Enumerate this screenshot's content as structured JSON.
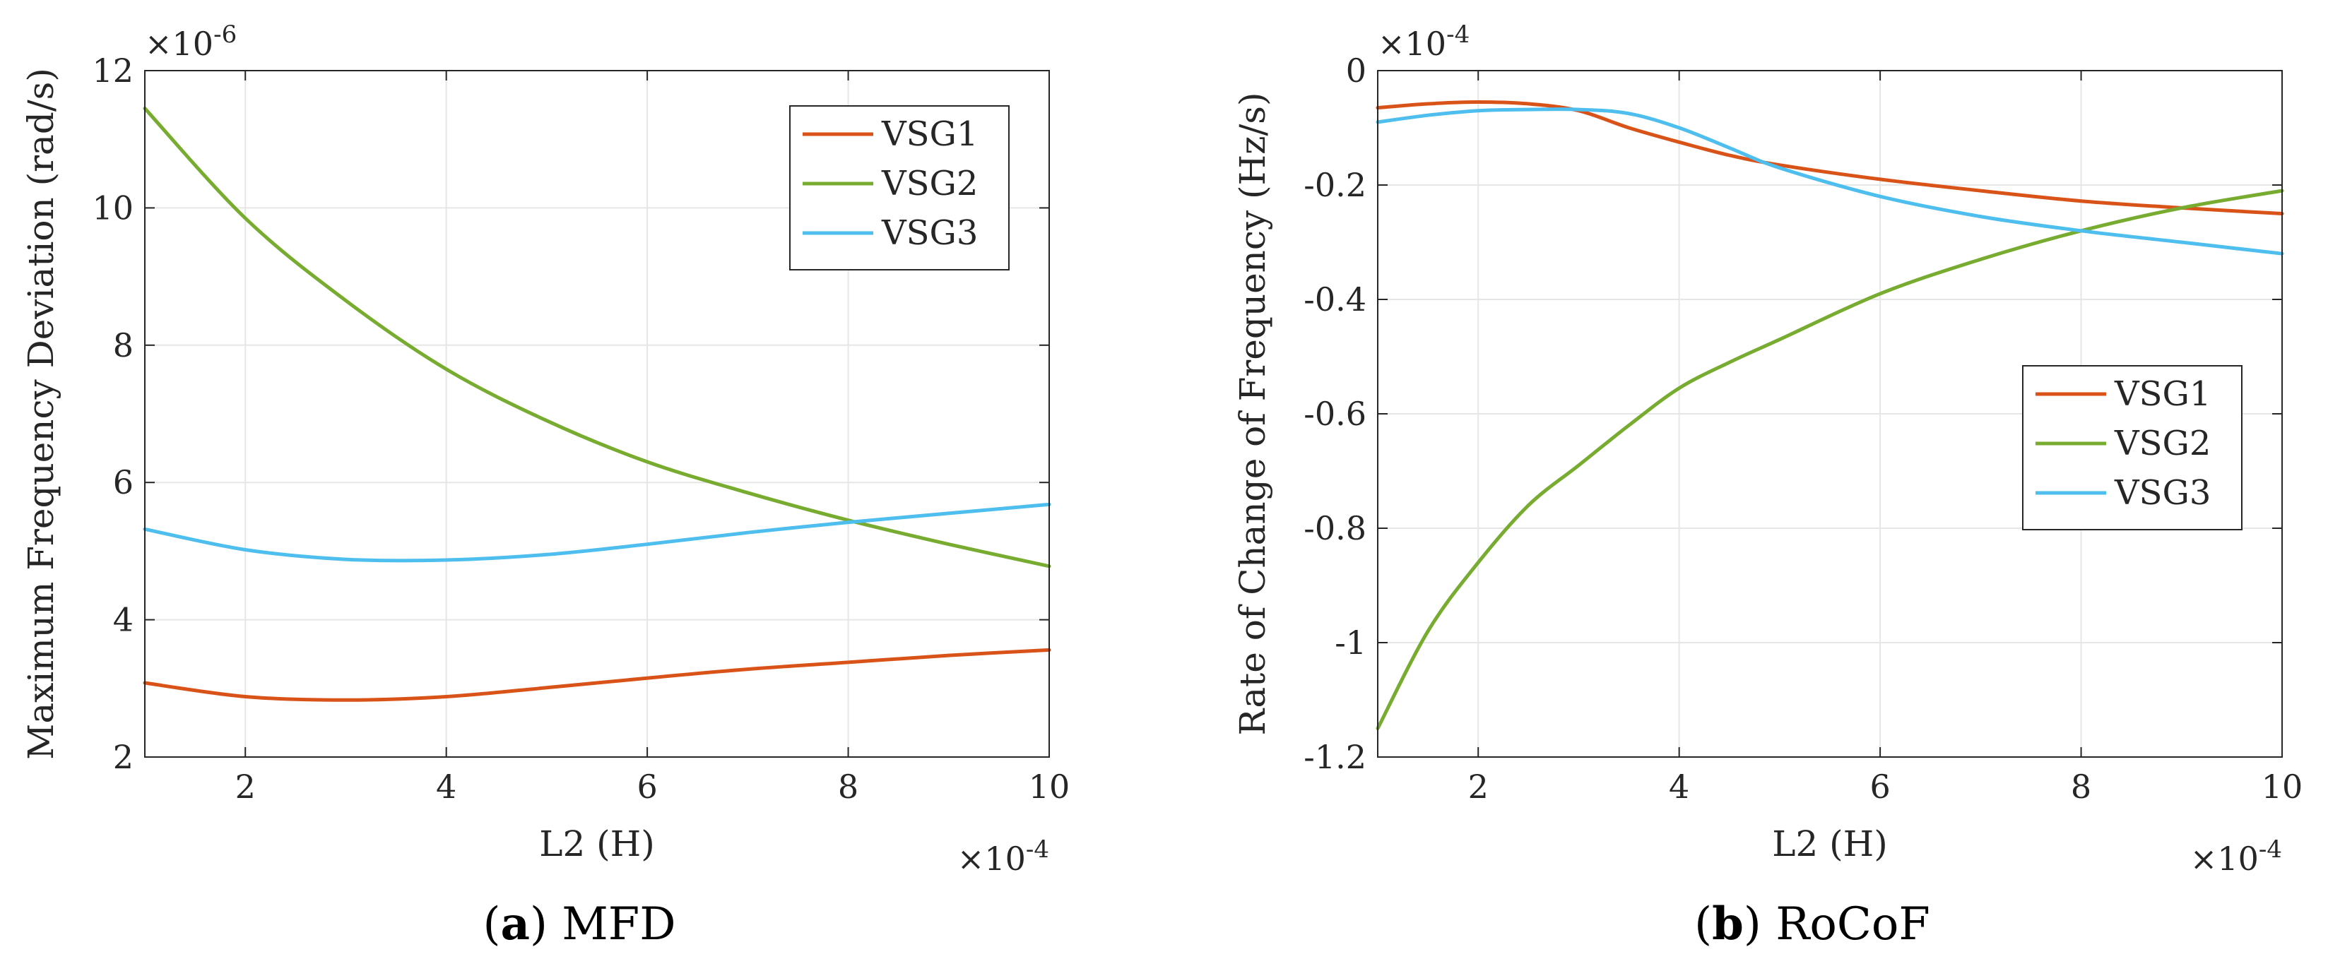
{
  "colors": {
    "VSG1": "#D95319",
    "VSG2": "#77AC30",
    "VSG3": "#4DBEEE",
    "grid": "#e6e6e6",
    "axis": "#262626"
  },
  "chart_data": [
    {
      "type": "line",
      "caption_letter": "a",
      "caption_text": "MFD",
      "xlabel": "L2 (H)",
      "ylabel": "Maximum Frequency Deviation (rad/s)",
      "x_multiplier_base": "×10",
      "x_multiplier_exp": "-4",
      "y_multiplier_base": "×10",
      "y_multiplier_exp": "-6",
      "xlim": [
        1,
        10
      ],
      "ylim": [
        2,
        12
      ],
      "xticks": [
        2,
        4,
        6,
        8,
        10
      ],
      "yticks": [
        2,
        4,
        6,
        8,
        10,
        12
      ],
      "grid": true,
      "legend_position": "top-right",
      "series": [
        {
          "name": "VSG1",
          "x": [
            1,
            2,
            3,
            4,
            5,
            6,
            7,
            8,
            9,
            10
          ],
          "values": [
            3.08,
            2.88,
            2.83,
            2.88,
            3.01,
            3.15,
            3.28,
            3.38,
            3.48,
            3.56
          ]
        },
        {
          "name": "VSG2",
          "x": [
            1,
            2,
            3,
            4,
            5,
            6,
            7,
            8,
            9,
            10
          ],
          "values": [
            11.45,
            9.85,
            8.65,
            7.65,
            6.9,
            6.3,
            5.85,
            5.45,
            5.1,
            4.78
          ]
        },
        {
          "name": "VSG3",
          "x": [
            1,
            2,
            3,
            4,
            5,
            6,
            7,
            8,
            9,
            10
          ],
          "values": [
            5.32,
            5.02,
            4.88,
            4.87,
            4.95,
            5.1,
            5.27,
            5.42,
            5.55,
            5.68
          ]
        }
      ]
    },
    {
      "type": "line",
      "caption_letter": "b",
      "caption_text": "RoCoF",
      "xlabel": "L2 (H)",
      "ylabel": "Rate of Change of Frequency (Hz/s)",
      "x_multiplier_base": "×10",
      "x_multiplier_exp": "-4",
      "y_multiplier_base": "×10",
      "y_multiplier_exp": "-4",
      "xlim": [
        1,
        10
      ],
      "ylim": [
        -1.2,
        0
      ],
      "xticks": [
        2,
        4,
        6,
        8,
        10
      ],
      "yticks": [
        0,
        -0.2,
        -0.4,
        -0.6,
        -0.8,
        -1,
        -1.2
      ],
      "ytick_labels": [
        "0",
        "-0.2",
        "-0.4",
        "-0.6",
        "-0.8",
        "-1",
        "-1.2"
      ],
      "grid": true,
      "legend_position": "center-right",
      "series": [
        {
          "name": "VSG1",
          "x": [
            1,
            1.5,
            2,
            2.5,
            3,
            3.5,
            4,
            4.5,
            5,
            6,
            7,
            8,
            9,
            10
          ],
          "values": [
            -0.065,
            -0.058,
            -0.055,
            -0.058,
            -0.07,
            -0.1,
            -0.125,
            -0.148,
            -0.165,
            -0.19,
            -0.21,
            -0.228,
            -0.24,
            -0.25
          ]
        },
        {
          "name": "VSG2",
          "x": [
            1,
            1.5,
            2,
            2.5,
            3,
            3.5,
            4,
            4.5,
            5,
            6,
            7,
            8,
            9,
            10
          ],
          "values": [
            -1.15,
            -0.98,
            -0.86,
            -0.76,
            -0.69,
            -0.62,
            -0.555,
            -0.51,
            -0.47,
            -0.39,
            -0.33,
            -0.28,
            -0.24,
            -0.21
          ]
        },
        {
          "name": "VSG3",
          "x": [
            1,
            1.5,
            2,
            2.5,
            3,
            3.5,
            4,
            4.5,
            5,
            6,
            7,
            8,
            9,
            10
          ],
          "values": [
            -0.09,
            -0.078,
            -0.07,
            -0.068,
            -0.068,
            -0.075,
            -0.1,
            -0.135,
            -0.17,
            -0.22,
            -0.255,
            -0.28,
            -0.3,
            -0.32
          ]
        }
      ]
    }
  ]
}
